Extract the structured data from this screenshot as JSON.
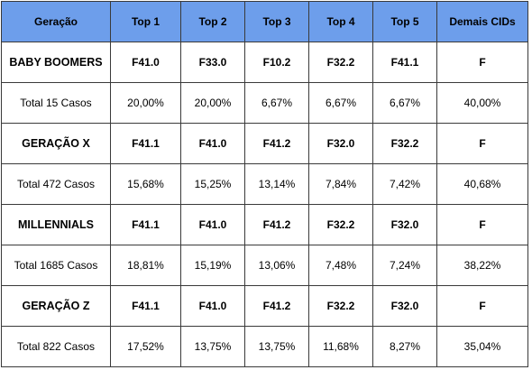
{
  "table": {
    "headers": [
      "Geração",
      "Top 1",
      "Top 2",
      "Top 3",
      "Top 4",
      "Top 5",
      "Demais CIDs"
    ],
    "groups": [
      {
        "name": "BABY BOOMERS",
        "codes": [
          "F41.0",
          "F33.0",
          "F10.2",
          "F32.2",
          "F41.1",
          "F"
        ],
        "total": "Total 15 Casos",
        "percents": [
          "20,00%",
          "20,00%",
          "6,67%",
          "6,67%",
          "6,67%",
          "40,00%"
        ]
      },
      {
        "name": "GERAÇÃO X",
        "codes": [
          "F41.1",
          "F41.0",
          "F41.2",
          "F32.0",
          "F32.2",
          "F"
        ],
        "total": "Total 472 Casos",
        "percents": [
          "15,68%",
          "15,25%",
          "13,14%",
          "7,84%",
          "7,42%",
          "40,68%"
        ]
      },
      {
        "name": "MILLENNIALS",
        "codes": [
          "F41.1",
          "F41.0",
          "F41.2",
          "F32.2",
          "F32.0",
          "F"
        ],
        "total": "Total 1685 Casos",
        "percents": [
          "18,81%",
          "15,19%",
          "13,06%",
          "7,48%",
          "7,24%",
          "38,22%"
        ]
      },
      {
        "name": "GERAÇÃO Z",
        "codes": [
          "F41.1",
          "F41.0",
          "F41.2",
          "F32.2",
          "F32.0",
          "F"
        ],
        "total": "Total 822 Casos",
        "percents": [
          "17,52%",
          "13,75%",
          "13,75%",
          "11,68%",
          "8,27%",
          "35,04%"
        ]
      }
    ]
  },
  "colors": {
    "header_background": "#6d9eeb",
    "border": "#3a3a3a"
  }
}
